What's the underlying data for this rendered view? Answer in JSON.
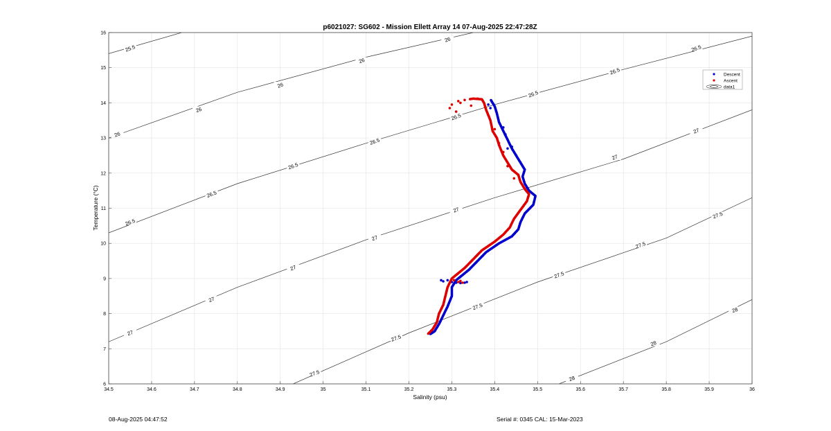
{
  "chart_data": {
    "type": "scatter",
    "title": "p6021027: SG602 - Mission Ellett Array 14 07-Aug-2025 22:47:28Z",
    "xlabel": "Salinity (psu)",
    "ylabel": "Temperature (°C)",
    "xlim": [
      34.5,
      36
    ],
    "ylim": [
      6,
      16
    ],
    "x_ticks": [
      "34.5",
      "34.6",
      "34.7",
      "34.8",
      "34.9",
      "35",
      "35.1",
      "35.2",
      "35.3",
      "35.4",
      "35.5",
      "35.6",
      "35.7",
      "35.8",
      "35.9",
      "36"
    ],
    "y_ticks": [
      "6",
      "7",
      "8",
      "9",
      "10",
      "11",
      "12",
      "13",
      "14",
      "15",
      "16"
    ],
    "grid": true,
    "legend_position": "top-right",
    "legend": [
      {
        "label": "Descent",
        "color": "#0000cc",
        "marker": "dot"
      },
      {
        "label": "Ascent",
        "color": "#dd0000",
        "marker": "dot"
      },
      {
        "label": "data1",
        "color": "#000000",
        "marker": "contour"
      }
    ],
    "density_contours": [
      {
        "label": "25.5",
        "points": [
          [
            34.5,
            15.4
          ],
          [
            34.67,
            16.0
          ]
        ]
      },
      {
        "label": "26",
        "points": [
          [
            34.5,
            13.0
          ],
          [
            34.8,
            14.3
          ],
          [
            35.1,
            15.3
          ],
          [
            35.35,
            16.0
          ]
        ]
      },
      {
        "label": "26.5",
        "points": [
          [
            34.5,
            10.3
          ],
          [
            34.8,
            11.7
          ],
          [
            35.1,
            12.85
          ],
          [
            35.4,
            13.95
          ],
          [
            35.7,
            14.95
          ],
          [
            36.0,
            15.9
          ]
        ]
      },
      {
        "label": "27",
        "points": [
          [
            34.5,
            7.2
          ],
          [
            34.8,
            8.75
          ],
          [
            35.1,
            10.1
          ],
          [
            35.4,
            11.3
          ],
          [
            35.7,
            12.4
          ],
          [
            36.0,
            13.8
          ]
        ]
      },
      {
        "label": "27.5",
        "points": [
          [
            34.93,
            6.0
          ],
          [
            35.2,
            7.45
          ],
          [
            35.5,
            8.9
          ],
          [
            35.8,
            10.15
          ],
          [
            36.0,
            11.3
          ]
        ]
      },
      {
        "label": "28",
        "points": [
          [
            35.55,
            6.0
          ],
          [
            35.8,
            7.2
          ],
          [
            36.0,
            8.4
          ]
        ]
      }
    ],
    "contour_labels": [
      {
        "text": "25.5",
        "x": 34.55,
        "y": 15.55
      },
      {
        "text": "26",
        "x": 34.52,
        "y": 13.1
      },
      {
        "text": "26",
        "x": 34.71,
        "y": 13.8
      },
      {
        "text": "26",
        "x": 34.9,
        "y": 14.5
      },
      {
        "text": "26",
        "x": 35.09,
        "y": 15.2
      },
      {
        "text": "26",
        "x": 35.29,
        "y": 15.8
      },
      {
        "text": "26.5",
        "x": 34.55,
        "y": 10.6
      },
      {
        "text": "26.5",
        "x": 34.74,
        "y": 11.4
      },
      {
        "text": "26.5",
        "x": 34.93,
        "y": 12.2
      },
      {
        "text": "26.5",
        "x": 35.12,
        "y": 12.9
      },
      {
        "text": "26.5",
        "x": 35.31,
        "y": 13.6
      },
      {
        "text": "26.5",
        "x": 35.49,
        "y": 14.25
      },
      {
        "text": "26.5",
        "x": 35.68,
        "y": 14.9
      },
      {
        "text": "26.5",
        "x": 35.87,
        "y": 15.55
      },
      {
        "text": "27",
        "x": 34.55,
        "y": 7.45
      },
      {
        "text": "27",
        "x": 34.74,
        "y": 8.4
      },
      {
        "text": "27",
        "x": 34.93,
        "y": 9.3
      },
      {
        "text": "27",
        "x": 35.12,
        "y": 10.15
      },
      {
        "text": "27",
        "x": 35.31,
        "y": 10.95
      },
      {
        "text": "27",
        "x": 35.68,
        "y": 12.45
      },
      {
        "text": "27",
        "x": 35.87,
        "y": 13.2
      },
      {
        "text": "27.5",
        "x": 34.98,
        "y": 6.3
      },
      {
        "text": "27.5",
        "x": 35.17,
        "y": 7.3
      },
      {
        "text": "27.5",
        "x": 35.36,
        "y": 8.2
      },
      {
        "text": "27.5",
        "x": 35.55,
        "y": 9.1
      },
      {
        "text": "27.5",
        "x": 35.74,
        "y": 9.95
      },
      {
        "text": "27.5",
        "x": 35.92,
        "y": 10.8
      },
      {
        "text": "28",
        "x": 35.58,
        "y": 6.15
      },
      {
        "text": "28",
        "x": 35.77,
        "y": 7.15
      },
      {
        "text": "28",
        "x": 35.96,
        "y": 8.1
      }
    ],
    "series": [
      {
        "name": "Descent",
        "color": "#0000cc",
        "path": [
          [
            35.25,
            7.42
          ],
          [
            35.26,
            7.5
          ],
          [
            35.27,
            7.7
          ],
          [
            35.28,
            7.95
          ],
          [
            35.29,
            8.2
          ],
          [
            35.3,
            8.5
          ],
          [
            35.3,
            8.75
          ],
          [
            35.31,
            8.95
          ],
          [
            35.34,
            9.25
          ],
          [
            35.36,
            9.5
          ],
          [
            35.38,
            9.75
          ],
          [
            35.41,
            10.0
          ],
          [
            35.44,
            10.2
          ],
          [
            35.455,
            10.4
          ],
          [
            35.46,
            10.6
          ],
          [
            35.47,
            10.85
          ],
          [
            35.49,
            11.1
          ],
          [
            35.495,
            11.35
          ],
          [
            35.48,
            11.5
          ],
          [
            35.47,
            11.7
          ],
          [
            35.465,
            11.9
          ],
          [
            35.47,
            12.1
          ],
          [
            35.46,
            12.3
          ],
          [
            35.45,
            12.5
          ],
          [
            35.44,
            12.7
          ],
          [
            35.43,
            12.95
          ],
          [
            35.42,
            13.2
          ],
          [
            35.41,
            13.45
          ],
          [
            35.405,
            13.7
          ],
          [
            35.4,
            13.9
          ],
          [
            35.395,
            14.0
          ],
          [
            35.39,
            14.1
          ]
        ],
        "scatter": [
          [
            35.29,
            8.95
          ],
          [
            35.3,
            8.9
          ],
          [
            35.31,
            8.88
          ],
          [
            35.32,
            8.87
          ],
          [
            35.33,
            8.88
          ],
          [
            35.335,
            8.9
          ],
          [
            35.28,
            8.92
          ],
          [
            35.275,
            8.95
          ],
          [
            35.43,
            12.7
          ],
          [
            35.44,
            12.75
          ],
          [
            35.425,
            13.1
          ],
          [
            35.42,
            13.3
          ],
          [
            35.39,
            13.85
          ],
          [
            35.385,
            13.95
          ]
        ]
      },
      {
        "name": "Ascent",
        "color": "#dd0000",
        "path": [
          [
            35.245,
            7.43
          ],
          [
            35.255,
            7.55
          ],
          [
            35.265,
            7.75
          ],
          [
            35.27,
            8.0
          ],
          [
            35.28,
            8.25
          ],
          [
            35.285,
            8.5
          ],
          [
            35.29,
            8.75
          ],
          [
            35.3,
            9.0
          ],
          [
            35.33,
            9.3
          ],
          [
            35.35,
            9.55
          ],
          [
            35.37,
            9.8
          ],
          [
            35.4,
            10.05
          ],
          [
            35.42,
            10.25
          ],
          [
            35.435,
            10.45
          ],
          [
            35.445,
            10.7
          ],
          [
            35.46,
            10.95
          ],
          [
            35.475,
            11.2
          ],
          [
            35.48,
            11.4
          ],
          [
            35.47,
            11.55
          ],
          [
            35.46,
            11.75
          ],
          [
            35.455,
            11.95
          ],
          [
            35.44,
            12.1
          ],
          [
            35.43,
            12.3
          ],
          [
            35.42,
            12.5
          ],
          [
            35.41,
            12.8
          ],
          [
            35.405,
            13.0
          ],
          [
            35.395,
            13.2
          ],
          [
            35.39,
            13.5
          ],
          [
            35.38,
            13.8
          ],
          [
            35.375,
            14.0
          ],
          [
            35.37,
            14.1
          ],
          [
            35.35,
            14.12
          ],
          [
            35.34,
            14.1
          ]
        ],
        "scatter": [
          [
            35.315,
            14.05
          ],
          [
            35.3,
            13.95
          ],
          [
            35.295,
            13.85
          ],
          [
            35.31,
            13.75
          ],
          [
            35.32,
            14.0
          ],
          [
            35.33,
            14.08
          ],
          [
            35.345,
            13.92
          ],
          [
            35.36,
            14.12
          ],
          [
            35.4,
            13.25
          ],
          [
            35.41,
            12.85
          ],
          [
            35.42,
            12.6
          ],
          [
            35.43,
            12.2
          ],
          [
            35.445,
            11.85
          ],
          [
            35.305,
            8.95
          ],
          [
            35.315,
            8.9
          ],
          [
            35.32,
            8.93
          ],
          [
            35.325,
            8.88
          ]
        ]
      }
    ]
  },
  "footer": {
    "timestamp": "08-Aug-2025 04:47:52",
    "serial": "Serial #: 0345  CAL: 15-Mar-2023"
  }
}
